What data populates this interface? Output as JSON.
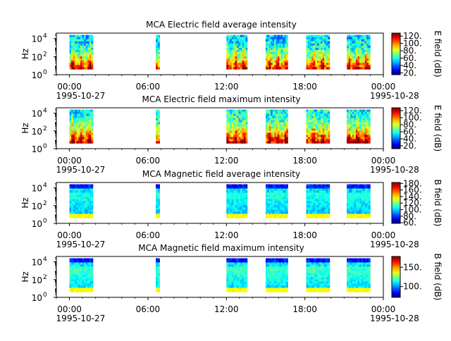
{
  "chart_data": [
    {
      "type": "heatmap",
      "title": "MCA  Electric field average intensity",
      "ylabel": "Hz",
      "colorbar_label": "E field (dB)",
      "colorbar_range": [
        15,
        128
      ],
      "colorbar_ticks": [
        20,
        40,
        60,
        80,
        100,
        120
      ],
      "colorbar_tick_labels": [
        "20.",
        "40.",
        "60.",
        "80.",
        "100.",
        "120."
      ],
      "y_ticks": [
        0,
        2,
        4
      ],
      "y_tick_labels": [
        "10",
        "10",
        "10"
      ],
      "y_tick_exponents": [
        "0",
        "2",
        "4"
      ],
      "field": "E",
      "variant": "avg"
    },
    {
      "type": "heatmap",
      "title": "MCA  Electric field maximum intensity",
      "ylabel": "Hz",
      "colorbar_label": "E field (dB)",
      "colorbar_range": [
        12,
        128
      ],
      "colorbar_ticks": [
        20,
        40,
        60,
        80,
        100,
        120
      ],
      "colorbar_tick_labels": [
        "20.",
        "40.",
        "60.",
        "80.",
        "100.",
        "120."
      ],
      "y_ticks": [
        0,
        2,
        4
      ],
      "y_tick_labels": [
        "10",
        "10",
        "10"
      ],
      "y_tick_exponents": [
        "0",
        "2",
        "4"
      ],
      "field": "E",
      "variant": "max"
    },
    {
      "type": "heatmap",
      "title": "MCA  Magnetic field average intensity",
      "ylabel": "Hz",
      "colorbar_label": "B field (dB)",
      "colorbar_range": [
        58,
        183
      ],
      "colorbar_ticks": [
        60,
        80,
        100,
        120,
        140,
        160,
        180
      ],
      "colorbar_tick_labels": [
        "60.",
        "80.",
        "100.",
        "120.",
        "140.",
        "160.",
        "180."
      ],
      "y_ticks": [
        0,
        2,
        4
      ],
      "y_tick_labels": [
        "10",
        "10",
        "10"
      ],
      "y_tick_exponents": [
        "0",
        "2",
        "4"
      ],
      "field": "B",
      "variant": "avg"
    },
    {
      "type": "heatmap",
      "title": "MCA  Magnetic field maximum intensity",
      "ylabel": "Hz",
      "colorbar_label": "B field (dB)",
      "colorbar_range": [
        72,
        178
      ],
      "colorbar_ticks": [
        100,
        150
      ],
      "colorbar_tick_labels": [
        "100.",
        "150."
      ],
      "y_ticks": [
        0,
        2,
        4
      ],
      "y_tick_labels": [
        "10",
        "10",
        "10"
      ],
      "y_tick_exponents": [
        "0",
        "2",
        "4"
      ],
      "field": "B",
      "variant": "max"
    }
  ],
  "x_axis": {
    "range_hours": [
      -1,
      24
    ],
    "major_ticks_hours": [
      0,
      6,
      12,
      18,
      24
    ],
    "major_tick_labels": [
      "00:00",
      "06:00",
      "12:00",
      "18:00",
      "00:00"
    ],
    "date_labels": [
      "1995-10-27",
      "",
      "",
      "",
      "1995-10-28"
    ],
    "minor_tick_step_hours": 1
  },
  "y_axis": {
    "log10_range": [
      0,
      4.6
    ],
    "bottom_exponent": 0.6
  },
  "data_intervals_hours": [
    [
      0.0,
      1.8
    ],
    [
      6.6,
      6.9
    ],
    [
      12.0,
      13.6
    ],
    [
      15.0,
      16.7
    ],
    [
      18.1,
      19.9
    ],
    [
      21.2,
      23.0
    ]
  ]
}
